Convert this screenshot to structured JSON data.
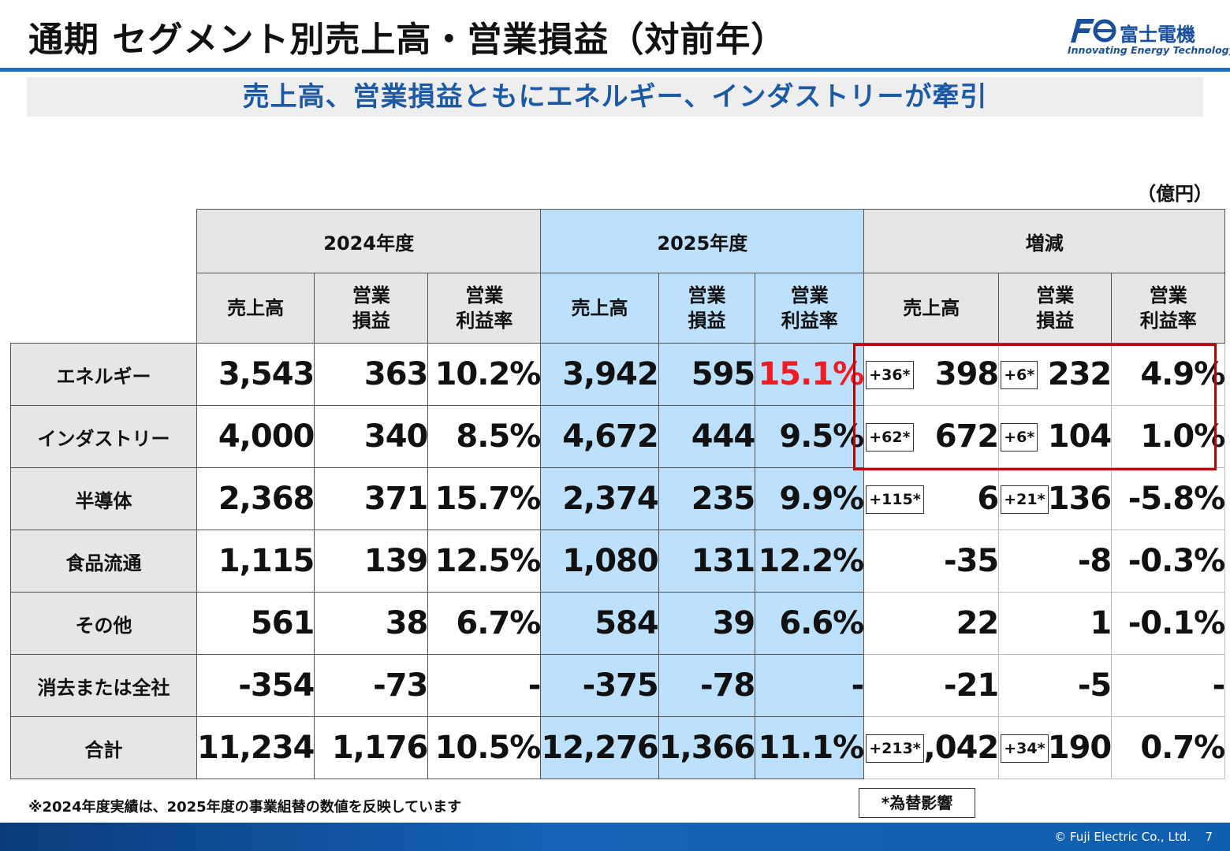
{
  "title": "通期 セグメント別売上高・営業損益（対前年）",
  "logo": {
    "name": "富士電機",
    "tagline": "Innovating Energy Technology"
  },
  "subtitle": "売上高、営業損益ともにエネルギー、インダストリーが牽引",
  "unit": "（億円）",
  "table": {
    "groups": [
      "2024年度",
      "2025年度",
      "増減"
    ],
    "subheaders": [
      "売上高",
      "営業\n損益",
      "営業\n利益率"
    ],
    "rows": [
      {
        "label": "エネルギー",
        "y24": [
          "3,543",
          "363",
          "10.2%"
        ],
        "y25": [
          "3,942",
          "595",
          "15.1%"
        ],
        "diff": [
          "398",
          "232",
          "4.9%"
        ],
        "fx": [
          "+36*",
          "+6*"
        ]
      },
      {
        "label": "インダストリー",
        "y24": [
          "4,000",
          "340",
          "8.5%"
        ],
        "y25": [
          "4,672",
          "444",
          "9.5%"
        ],
        "diff": [
          "672",
          "104",
          "1.0%"
        ],
        "fx": [
          "+62*",
          "+6*"
        ]
      },
      {
        "label": "半導体",
        "y24": [
          "2,368",
          "371",
          "15.7%"
        ],
        "y25": [
          "2,374",
          "235",
          "9.9%"
        ],
        "diff": [
          "6",
          "-136",
          "-5.8%"
        ],
        "fx": [
          "+115*",
          "+21*"
        ]
      },
      {
        "label": "食品流通",
        "y24": [
          "1,115",
          "139",
          "12.5%"
        ],
        "y25": [
          "1,080",
          "131",
          "12.2%"
        ],
        "diff": [
          "-35",
          "-8",
          "-0.3%"
        ],
        "fx": [
          "",
          ""
        ]
      },
      {
        "label": "その他",
        "y24": [
          "561",
          "38",
          "6.7%"
        ],
        "y25": [
          "584",
          "39",
          "6.6%"
        ],
        "diff": [
          "22",
          "1",
          "-0.1%"
        ],
        "fx": [
          "",
          ""
        ]
      },
      {
        "label": "消去または全社",
        "y24": [
          "-354",
          "-73",
          "-"
        ],
        "y25": [
          "-375",
          "-78",
          "-"
        ],
        "diff": [
          "-21",
          "-5",
          "-"
        ],
        "fx": [
          "",
          ""
        ]
      },
      {
        "label": "合計",
        "y24": [
          "11,234",
          "1,176",
          "10.5%"
        ],
        "y25": [
          "12,276",
          "1,366",
          "11.1%"
        ],
        "diff": [
          "1,042",
          "190",
          "0.7%"
        ],
        "fx": [
          "+213*",
          "+34*"
        ]
      }
    ]
  },
  "highlight_color": "#ee1c25",
  "note": "※2024年度実績は、2025年度の事業組替の数値を反映しています",
  "legend": "*為替影響",
  "footer": {
    "copyright": "© Fuji Electric Co., Ltd.",
    "page": "7"
  }
}
